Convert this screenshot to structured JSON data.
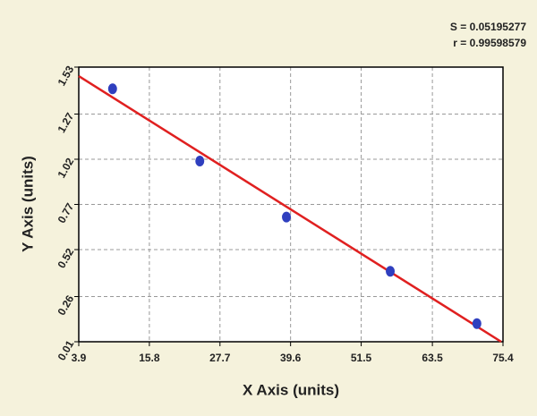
{
  "chart_data": {
    "type": "scatter",
    "x_label": "X Axis (units)",
    "y_label": "Y Axis (units)",
    "annotations": [
      "S = 0.05195277",
      "r = 0.99598579"
    ],
    "points": {
      "x": [
        9.6,
        24.3,
        38.9,
        56.4,
        71.0
      ],
      "values": [
        1.41,
        1.01,
        0.7,
        0.4,
        0.11
      ],
      "color": "#2f3fbf"
    },
    "fit_line": {
      "x": [
        3.9,
        75.1
      ],
      "values": [
        1.48,
        0.01
      ],
      "color": "#e02020"
    },
    "xlim": [
      3.9,
      75.4
    ],
    "xticks": [
      3.9,
      15.8,
      27.7,
      39.6,
      51.5,
      63.5,
      75.4
    ],
    "ylim": [
      0.01,
      1.53
    ],
    "yticks": [
      0.01,
      0.26,
      0.52,
      0.77,
      1.02,
      1.27,
      1.53
    ],
    "grid": true
  }
}
